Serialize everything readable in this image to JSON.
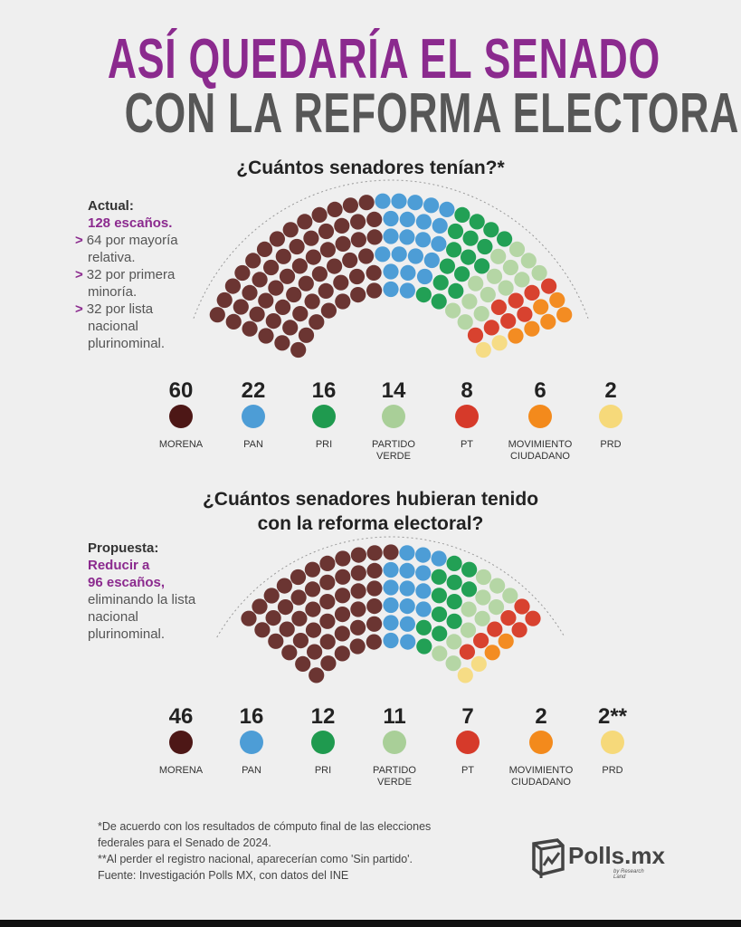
{
  "title": {
    "line1": "ASÍ QUEDARÍA EL SENADO",
    "line2": "CON LA REFORMA ELECTORAL"
  },
  "colors": {
    "title_accent": "#8b2a8e",
    "title_gray": "#575757"
  },
  "chart_data": [
    {
      "type": "parliament",
      "title": "¿Cuántos senadores tenían?*",
      "total": 128,
      "series": [
        {
          "name": "MORENA",
          "value": 60,
          "color": "#6b3532",
          "legend_color": "#4d1716"
        },
        {
          "name": "PAN",
          "value": 22,
          "color": "#4d9dd6",
          "legend_color": "#4d9dd6"
        },
        {
          "name": "PRI",
          "value": 16,
          "color": "#22a055",
          "legend_color": "#1f9a4f"
        },
        {
          "name": "PARTIDO VERDE",
          "value": 14,
          "color": "#b5d6a5",
          "legend_color": "#a9cf98"
        },
        {
          "name": "PT",
          "value": 8,
          "color": "#d8422f",
          "legend_color": "#d63a2a"
        },
        {
          "name": "MOVIMIENTO CIUDADANO",
          "value": 6,
          "color": "#f38c22",
          "legend_color": "#f38a1c"
        },
        {
          "name": "PRD",
          "value": 2,
          "color": "#f6dc85",
          "legend_color": "#f6d97a"
        }
      ],
      "value_labels": [
        "60",
        "22",
        "16",
        "14",
        "8",
        "6",
        "2"
      ],
      "legend_labels": [
        [
          "MORENA"
        ],
        [
          "PAN"
        ],
        [
          "PRI"
        ],
        [
          "PARTIDO",
          "VERDE"
        ],
        [
          "PT"
        ],
        [
          "MOVIMIENTO",
          "CIUDADANO"
        ],
        [
          "PRD"
        ]
      ]
    },
    {
      "type": "parliament",
      "title": "¿Cuántos senadores hubieran tenido con la reforma electoral?",
      "title_lines": [
        "¿Cuántos senadores hubieran tenido",
        "con la reforma electoral?"
      ],
      "total": 96,
      "series": [
        {
          "name": "MORENA",
          "value": 46,
          "color": "#6b3532",
          "legend_color": "#4d1716"
        },
        {
          "name": "PAN",
          "value": 16,
          "color": "#4d9dd6",
          "legend_color": "#4d9dd6"
        },
        {
          "name": "PRI",
          "value": 12,
          "color": "#22a055",
          "legend_color": "#1f9a4f"
        },
        {
          "name": "PARTIDO VERDE",
          "value": 11,
          "color": "#b5d6a5",
          "legend_color": "#a9cf98"
        },
        {
          "name": "PT",
          "value": 7,
          "color": "#d8422f",
          "legend_color": "#d63a2a"
        },
        {
          "name": "MOVIMIENTO CIUDADANO",
          "value": 2,
          "color": "#f38c22",
          "legend_color": "#f38a1c"
        },
        {
          "name": "PRD",
          "value": 2,
          "color": "#f6dc85",
          "legend_color": "#f6d97a"
        }
      ],
      "value_labels": [
        "46",
        "16",
        "12",
        "11",
        "7",
        "2",
        "2**"
      ],
      "legend_labels": [
        [
          "MORENA"
        ],
        [
          "PAN"
        ],
        [
          "PRI"
        ],
        [
          "PARTIDO",
          "VERDE"
        ],
        [
          "PT"
        ],
        [
          "MOVIMIENTO",
          "CIUDADANO"
        ],
        [
          "PRD"
        ]
      ]
    }
  ],
  "side1": {
    "heading": "Actual:",
    "highlight": "128 escaños.",
    "items": [
      [
        "64 por mayoría",
        "relativa."
      ],
      [
        "32 por primera",
        "minoría."
      ],
      [
        "32 por lista",
        "nacional",
        "plurinominal."
      ]
    ]
  },
  "side2": {
    "heading": "Propuesta:",
    "highlight": [
      "Reducir a",
      "96 escaños,"
    ],
    "lines": [
      "eliminando la lista",
      "nacional",
      "plurinominal."
    ]
  },
  "footer": {
    "lines": [
      "*De acuerdo con los resultados de cómputo final de las elecciones",
      "federales para el Senado de 2024.",
      "**Al perder el registro nacional, aparecerían como 'Sin partido'.",
      "Fuente: Investigación Polls MX, con datos del INE"
    ]
  },
  "logo": {
    "name": "Polls.mx",
    "tagline": "by Research Land"
  }
}
